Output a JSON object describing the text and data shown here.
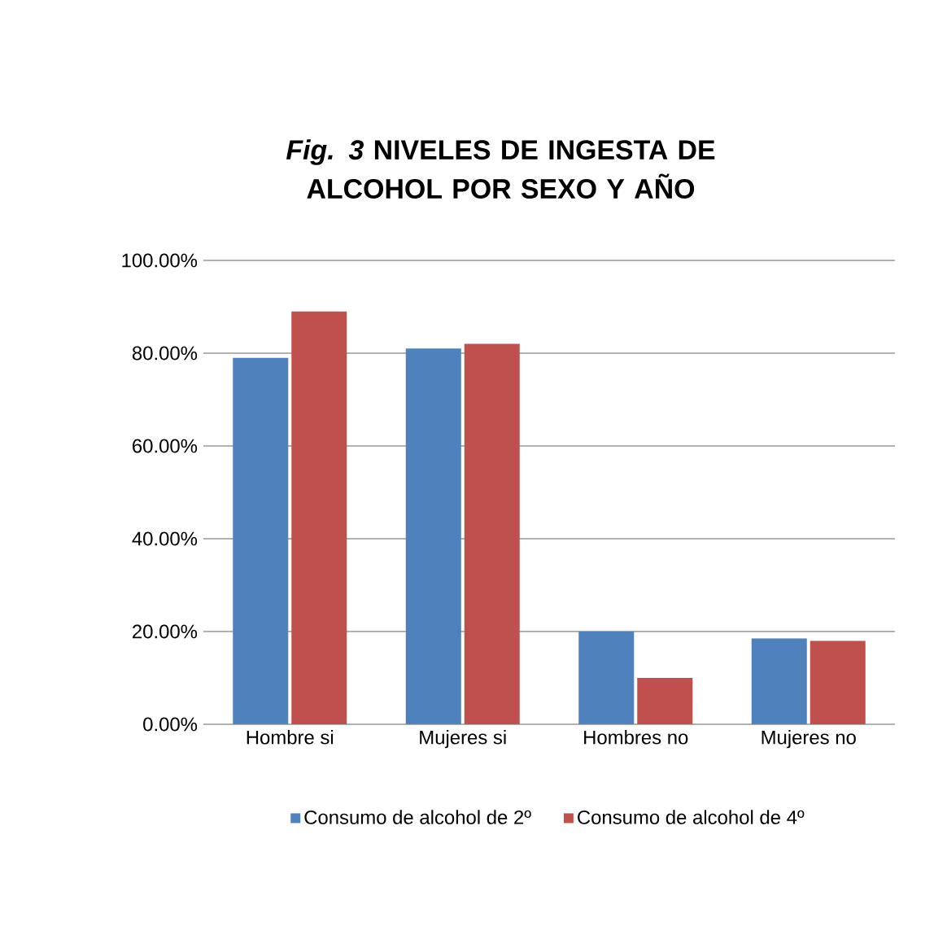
{
  "chart_data": {
    "type": "bar",
    "title": "*Fig. 3* NIVELES DE INGESTA DE ALCOHOL POR SEXO Y AÑO",
    "categories": [
      "Hombre si",
      "Mujeres si",
      "Hombres no",
      "Mujeres no"
    ],
    "series": [
      {
        "name": "Consumo de alcohol de 2º",
        "color": "#4f81bd",
        "values": [
          79,
          81,
          20,
          18.5
        ]
      },
      {
        "name": "Consumo de alcohol de 4º",
        "color": "#c0504d",
        "values": [
          89,
          82,
          10,
          18
        ]
      }
    ],
    "ylim": [
      0,
      100
    ],
    "yticks": [
      {
        "value": 0,
        "label": "0.00%"
      },
      {
        "value": 20,
        "label": "20.00%"
      },
      {
        "value": 40,
        "label": "40.00%"
      },
      {
        "value": 60,
        "label": "60.00%"
      },
      {
        "value": 80,
        "label": "80.00%"
      },
      {
        "value": 100,
        "label": "100.00%"
      }
    ],
    "grid": "y",
    "legend": "bottom"
  }
}
